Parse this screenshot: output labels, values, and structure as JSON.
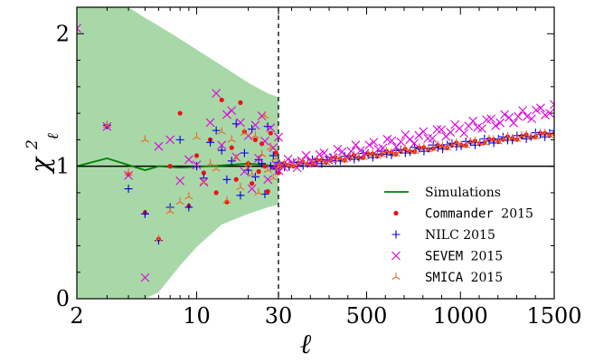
{
  "chart_data": {
    "type": "scatter",
    "xlabel": "ℓ",
    "ylabel_base": "χ",
    "ylabel_sup": "2",
    "ylabel_sub": "ℓ",
    "ylim": [
      0,
      2.2
    ],
    "x_scale": "hybrid: logarithmic for ℓ 2–30, linear for ℓ 30–1500",
    "x_divider": 30,
    "x_ticks": [
      {
        "value": 2,
        "label": "2"
      },
      {
        "value": 10,
        "label": "10"
      },
      {
        "value": 30,
        "label": "30"
      },
      {
        "value": 500,
        "label": "500"
      },
      {
        "value": 1000,
        "label": "1000"
      },
      {
        "value": 1500,
        "label": "1500"
      }
    ],
    "y_ticks": [
      {
        "value": 0,
        "label": "0"
      },
      {
        "value": 1,
        "label": "1"
      },
      {
        "value": 2,
        "label": "2"
      }
    ],
    "reference_line_y": 1,
    "legend_position": "lower-right",
    "band": {
      "color": "#a8d8a8",
      "x": [
        2,
        3,
        4,
        5,
        6,
        8,
        10,
        14,
        20,
        26,
        30,
        30.5,
        31
      ],
      "upper": [
        2.2,
        2.2,
        2.2,
        2.12,
        2.06,
        1.96,
        1.88,
        1.76,
        1.63,
        1.55,
        1.52,
        1.12,
        1.08
      ],
      "lower": [
        0,
        0,
        0,
        0,
        0.05,
        0.25,
        0.39,
        0.56,
        0.64,
        0.69,
        0.71,
        0.92,
        0.95
      ]
    },
    "sim_line": {
      "name": "Simulations",
      "color": "#008000",
      "x": [
        2,
        3,
        5,
        6,
        8,
        12,
        20,
        30,
        31
      ],
      "y": [
        1.0,
        1.06,
        0.97,
        1.0,
        0.99,
        1.0,
        1.02,
        1.0,
        1.0
      ]
    },
    "series": [
      {
        "name": "Commander 2015",
        "name_mono": "Commander",
        "name_rest": "2015",
        "marker": "dot",
        "color": "#ee1111",
        "low": [
          [
            3,
            1.3
          ],
          [
            4,
            0.94
          ],
          [
            5,
            0.65
          ],
          [
            6,
            0.45
          ],
          [
            7,
            1.0
          ],
          [
            8,
            1.4
          ],
          [
            9,
            0.7
          ],
          [
            10,
            1.08
          ],
          [
            11,
            0.95
          ],
          [
            12,
            1.2
          ],
          [
            13,
            0.8
          ],
          [
            14,
            1.5
          ],
          [
            15,
            0.73
          ],
          [
            16,
            1.14
          ],
          [
            17,
            0.9
          ],
          [
            18,
            1.48
          ],
          [
            19,
            1.26
          ],
          [
            20,
            1.02
          ],
          [
            21,
            0.87
          ],
          [
            22,
            1.2
          ],
          [
            23,
            0.96
          ],
          [
            24,
            1.17
          ],
          [
            25,
            1.0
          ],
          [
            26,
            0.81
          ],
          [
            27,
            1.25
          ],
          [
            28,
            0.99
          ],
          [
            29,
            1.1
          ],
          [
            30,
            0.95
          ]
        ],
        "high": {
          "start": 35,
          "end": 1500,
          "count": 60,
          "base": 1.0,
          "slope": 0.25,
          "amp": 0.015
        }
      },
      {
        "name": "NILC 2015",
        "name_mono": "",
        "name_rest": "NILC 2015",
        "marker": "plus",
        "color": "#0000dd",
        "low": [
          [
            3,
            1.31
          ],
          [
            4,
            0.83
          ],
          [
            5,
            0.64
          ],
          [
            6,
            0.44
          ],
          [
            7,
            0.69
          ],
          [
            8,
            1.2
          ],
          [
            9,
            0.69
          ],
          [
            10,
            1.0
          ],
          [
            11,
            0.91
          ],
          [
            12,
            1.18
          ],
          [
            13,
            1.27
          ],
          [
            14,
            1.12
          ],
          [
            15,
            0.9
          ],
          [
            16,
            1.04
          ],
          [
            17,
            1.32
          ],
          [
            18,
            0.78
          ],
          [
            19,
            1.1
          ],
          [
            20,
            0.97
          ],
          [
            21,
            1.28
          ],
          [
            22,
            0.92
          ],
          [
            23,
            1.05
          ],
          [
            24,
            1.02
          ],
          [
            25,
            0.79
          ],
          [
            26,
            1.3
          ],
          [
            27,
            1.0
          ],
          [
            28,
            1.08
          ],
          [
            29,
            0.98
          ],
          [
            30,
            1.03
          ]
        ],
        "high": {
          "start": 37,
          "end": 1500,
          "count": 60,
          "base": 1.0,
          "slope": 0.25,
          "amp": 0.02
        }
      },
      {
        "name": "SEVEM 2015",
        "name_mono": "SEVEM",
        "name_rest": "2015",
        "marker": "x",
        "color": "#dd00dd",
        "low": [
          [
            2,
            2.04
          ],
          [
            3,
            1.3
          ],
          [
            4,
            0.93
          ],
          [
            5,
            0.16
          ],
          [
            6,
            1.15
          ],
          [
            7,
            1.2
          ],
          [
            8,
            0.89
          ],
          [
            9,
            1.05
          ],
          [
            10,
            1.01
          ],
          [
            11,
            0.88
          ],
          [
            12,
            1.33
          ],
          [
            13,
            1.55
          ],
          [
            14,
            1.16
          ],
          [
            15,
            1.39
          ],
          [
            16,
            1.42
          ],
          [
            17,
            1.07
          ],
          [
            18,
            1.33
          ],
          [
            19,
            0.96
          ],
          [
            20,
            1.23
          ],
          [
            21,
            0.83
          ],
          [
            22,
            1.31
          ],
          [
            23,
            1.06
          ],
          [
            24,
            1.38
          ],
          [
            25,
            1.19
          ],
          [
            26,
            0.9
          ],
          [
            27,
            1.29
          ],
          [
            28,
            1.14
          ],
          [
            29,
            1.01
          ],
          [
            30,
            1.22
          ]
        ],
        "high": {
          "start": 33,
          "end": 1500,
          "count": 62,
          "base": 1.0,
          "slope": 0.43,
          "amp": 0.04
        }
      },
      {
        "name": "SMICA 2015",
        "name_mono": "SMICA",
        "name_rest": "2015",
        "marker": "tri",
        "color": "#ee6622",
        "low": [
          [
            3,
            1.31
          ],
          [
            4,
            0.95
          ],
          [
            5,
            1.2
          ],
          [
            6,
            0.45
          ],
          [
            7,
            0.66
          ],
          [
            8,
            0.73
          ],
          [
            9,
            0.77
          ],
          [
            10,
            1.22
          ],
          [
            11,
            0.88
          ],
          [
            12,
            1.02
          ],
          [
            13,
            0.98
          ],
          [
            14,
            1.26
          ],
          [
            15,
            0.74
          ],
          [
            16,
            1.2
          ],
          [
            17,
            1.06
          ],
          [
            18,
            0.84
          ],
          [
            19,
            1.25
          ],
          [
            20,
            1.01
          ],
          [
            21,
            0.94
          ],
          [
            22,
            1.23
          ],
          [
            23,
            0.8
          ],
          [
            24,
            1.09
          ],
          [
            25,
            1.38
          ],
          [
            26,
            0.97
          ],
          [
            27,
            1.14
          ],
          [
            28,
            0.91
          ],
          [
            29,
            1.06
          ],
          [
            30,
            0.99
          ]
        ],
        "high": {
          "start": 36,
          "end": 1500,
          "count": 60,
          "base": 1.0,
          "slope": 0.25,
          "amp": 0.015
        }
      }
    ]
  }
}
